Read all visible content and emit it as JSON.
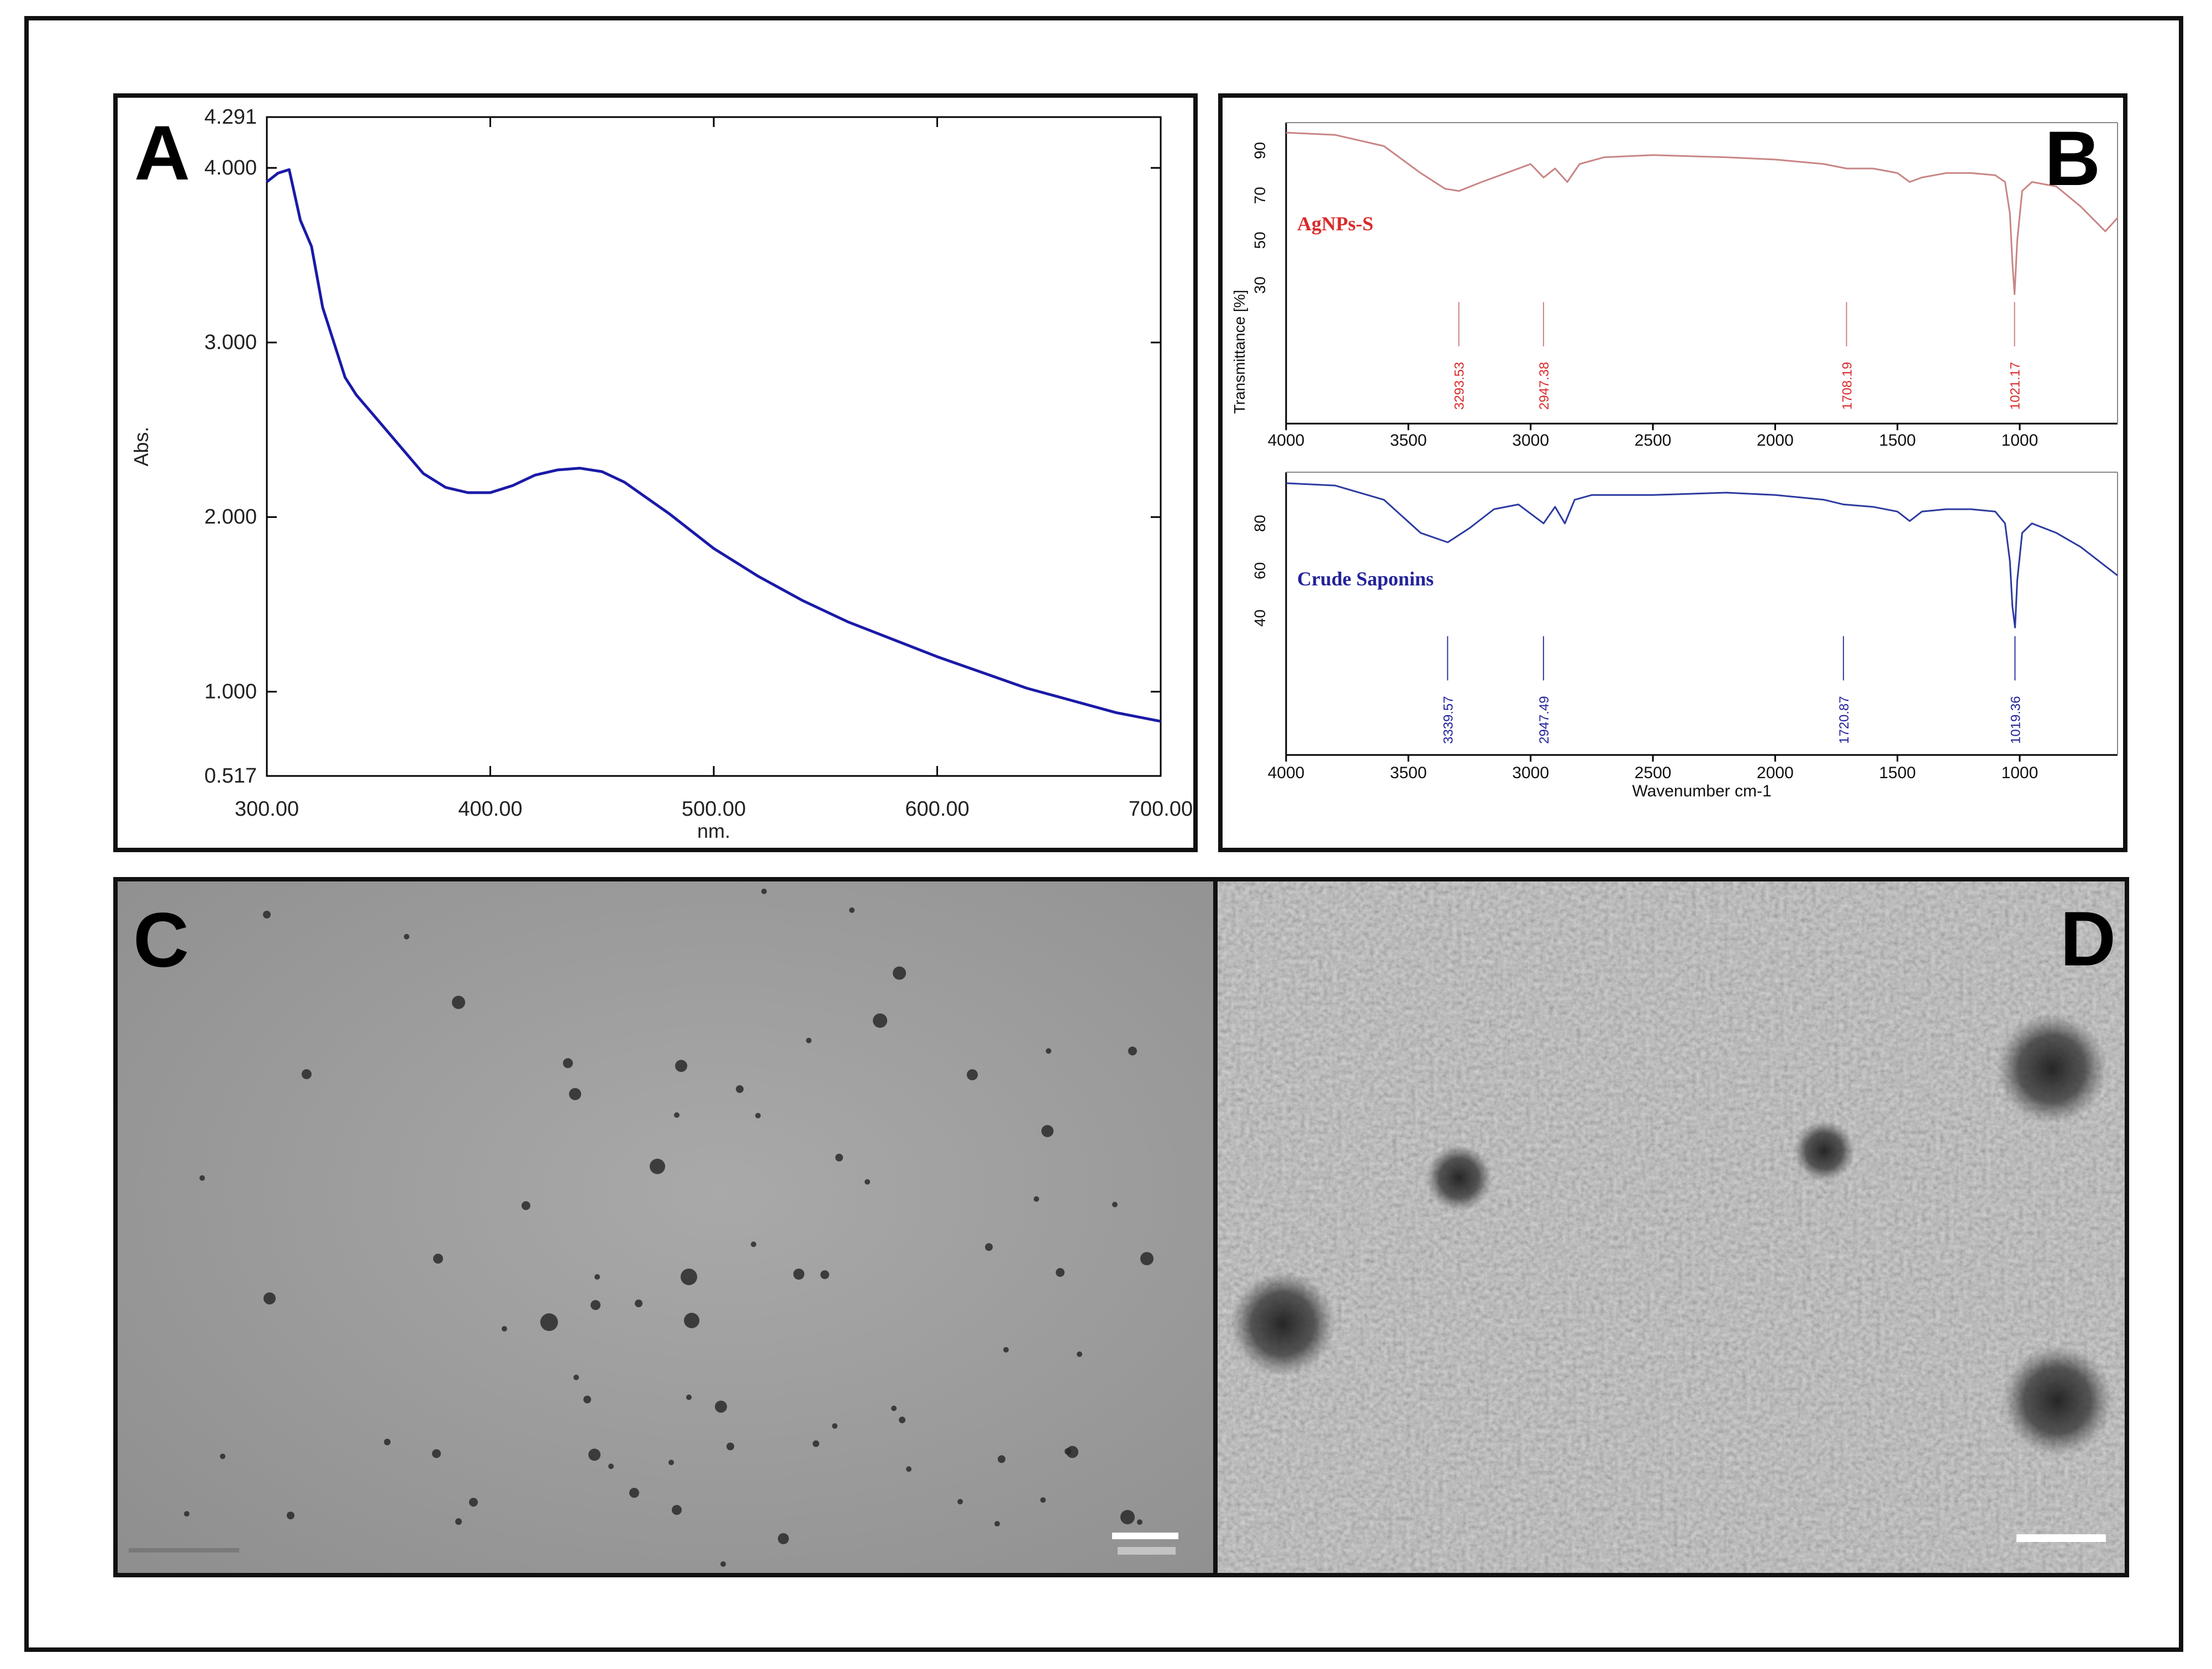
{
  "figure": {
    "panels": [
      {
        "letter": "A"
      },
      {
        "letter": "B"
      },
      {
        "letter": "C"
      },
      {
        "letter": "D"
      }
    ]
  },
  "chart_data": [
    {
      "type": "line",
      "panel": "A",
      "title": "",
      "xlabel": "nm.",
      "ylabel": "Abs.",
      "xlim": [
        300,
        700
      ],
      "ylim": [
        0.517,
        4.291
      ],
      "xticks": [
        "300.00",
        "400.00",
        "500.00",
        "600.00",
        "700.00"
      ],
      "yticks": [
        "0.517",
        "1.000",
        "2.000",
        "3.000",
        "4.000",
        "4.291"
      ],
      "color": "#1a1aa8",
      "series": [
        {
          "x": [
            300,
            305,
            310,
            315,
            320,
            325,
            330,
            335,
            340,
            350,
            360,
            370,
            380,
            390,
            400,
            410,
            420,
            430,
            440,
            450,
            460,
            470,
            480,
            490,
            500,
            520,
            540,
            560,
            580,
            600,
            620,
            640,
            660,
            680,
            700
          ],
          "y": [
            3.92,
            3.97,
            3.99,
            3.7,
            3.55,
            3.2,
            3.0,
            2.8,
            2.7,
            2.55,
            2.4,
            2.25,
            2.17,
            2.14,
            2.14,
            2.18,
            2.24,
            2.27,
            2.28,
            2.26,
            2.2,
            2.11,
            2.02,
            1.92,
            1.82,
            1.66,
            1.52,
            1.4,
            1.3,
            1.2,
            1.11,
            1.02,
            0.95,
            0.88,
            0.83
          ]
        }
      ]
    },
    {
      "type": "line",
      "panel": "B",
      "ylabel": "Transmittance [%]",
      "xlabel": "Wavenumber cm-1",
      "xlim": [
        4000,
        600
      ],
      "xticks": [
        "4000",
        "3500",
        "3000",
        "2500",
        "2000",
        "1500",
        "1000"
      ],
      "series": [
        {
          "name": "AgNPs-S",
          "color": "#d92a2a",
          "line_color": "#c98585",
          "yticks": [
            "30",
            "50",
            "70",
            "90"
          ],
          "ylim": [
            20,
            100
          ],
          "x": [
            4000,
            3800,
            3600,
            3450,
            3350,
            3293,
            3200,
            3100,
            3000,
            2947,
            2900,
            2850,
            2800,
            2700,
            2500,
            2200,
            2000,
            1800,
            1708,
            1600,
            1500,
            1450,
            1400,
            1300,
            1200,
            1100,
            1060,
            1040,
            1030,
            1021,
            1010,
            990,
            950,
            850,
            750,
            650,
            600
          ],
          "y": [
            98,
            97,
            92,
            80,
            73,
            72,
            76,
            80,
            84,
            78,
            82,
            76,
            84,
            87,
            88,
            87,
            86,
            84,
            82,
            82,
            80,
            76,
            78,
            80,
            80,
            79,
            76,
            62,
            40,
            26,
            50,
            72,
            76,
            74,
            65,
            54,
            60
          ],
          "peaks": [
            "3293.53",
            "2947.38",
            "1708.19",
            "1021.17"
          ],
          "peak_x": [
            3293.53,
            2947.38,
            1708.19,
            1021.17
          ]
        },
        {
          "name": "Crude Saponins",
          "color": "#22229a",
          "line_color": "#2c3aa0",
          "yticks": [
            "40",
            "60",
            "80"
          ],
          "ylim": [
            30,
            100
          ],
          "x": [
            4000,
            3800,
            3600,
            3450,
            3339,
            3250,
            3150,
            3050,
            2947,
            2900,
            2860,
            2820,
            2750,
            2500,
            2200,
            2000,
            1800,
            1720,
            1600,
            1500,
            1450,
            1400,
            1300,
            1200,
            1100,
            1060,
            1040,
            1030,
            1019,
            1010,
            990,
            950,
            850,
            750,
            650,
            600
          ],
          "y": [
            97,
            96,
            90,
            76,
            72,
            78,
            86,
            88,
            80,
            87,
            80,
            90,
            92,
            92,
            93,
            92,
            90,
            88,
            87,
            85,
            81,
            85,
            86,
            86,
            85,
            80,
            64,
            45,
            36,
            56,
            76,
            80,
            76,
            70,
            62,
            58
          ],
          "peaks": [
            "3339.57",
            "2947.49",
            "1720.87",
            "1019.36"
          ],
          "peak_x": [
            3339.57,
            2947.49,
            1720.87,
            1019.36
          ]
        }
      ]
    }
  ]
}
